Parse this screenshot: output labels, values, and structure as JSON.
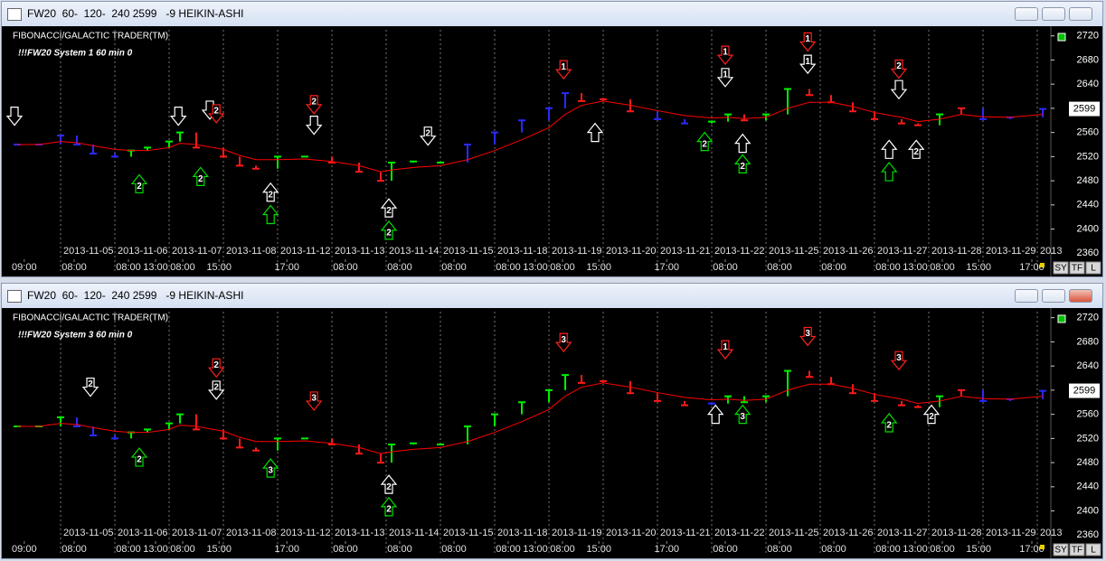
{
  "chart_data": [
    {
      "type": "heikin-ashi",
      "title": "FW20  60-  120-  240 2599   -9 HEIKIN-ASHI",
      "subtitle": "FIBONACCI/GALACTIC TRADER(TM)",
      "annotation": "!!!FW20 System 1 60 min 0",
      "buttons": [
        "SY",
        "TF",
        "L"
      ],
      "last_price": 2599,
      "categories": [
        "2013-11-05",
        "2013-11-06",
        "2013-11-07",
        "2013-11-08",
        "2013-11-12",
        "2013-11-13",
        "2013-11-14",
        "2013-11-15",
        "2013-11-18",
        "2013-11-19",
        "2013-11-20",
        "2013-11-21",
        "2013-11-22",
        "2013-11-25",
        "2013-11-26",
        "2013-11-27",
        "2013-11-28",
        "2013-11-29",
        "2013"
      ],
      "xticks": [
        {
          "value": -0.67,
          "label": "09:00"
        },
        {
          "value": 0.25,
          "label": "08:00"
        },
        {
          "value": 1.25,
          "label": "08:00"
        },
        {
          "value": 1.75,
          "label": "13:00"
        },
        {
          "value": 2.25,
          "label": "08:00"
        },
        {
          "value": 2.92,
          "label": "15:00"
        },
        {
          "value": 4.17,
          "label": "17:00"
        },
        {
          "value": 5.25,
          "label": "08:00"
        },
        {
          "value": 6.25,
          "label": "08:00"
        },
        {
          "value": 7.25,
          "label": "08:00"
        },
        {
          "value": 8.25,
          "label": "08:00"
        },
        {
          "value": 8.75,
          "label": "13:00"
        },
        {
          "value": 9.25,
          "label": "08:00"
        },
        {
          "value": 9.92,
          "label": "15:00"
        },
        {
          "value": 11.17,
          "label": "17:00"
        },
        {
          "value": 12.25,
          "label": "08:00"
        },
        {
          "value": 13.25,
          "label": "08:00"
        },
        {
          "value": 14.25,
          "label": "08:00"
        },
        {
          "value": 15.25,
          "label": "08:00"
        },
        {
          "value": 15.75,
          "label": "13:00"
        },
        {
          "value": 16.25,
          "label": "08:00"
        },
        {
          "value": 16.92,
          "label": "15:00"
        },
        {
          "value": 17.9,
          "label": "17:00"
        }
      ],
      "xlim": [
        -0.917,
        18.25
      ],
      "ylim": [
        2350,
        2730
      ],
      "yticks": [
        2360,
        2400,
        2440,
        2480,
        2520,
        2560,
        2600,
        2640,
        2680,
        2720
      ],
      "x": [
        -0.8,
        -0.4,
        0,
        0.3,
        0.6,
        1,
        1.3,
        1.6,
        2,
        2.2,
        2.5,
        3,
        3.3,
        3.6,
        4,
        4.5,
        5,
        5.5,
        5.9,
        6.1,
        6.5,
        7,
        7.5,
        8,
        8.5,
        9,
        9.3,
        9.6,
        10,
        10.5,
        11,
        11.5,
        12,
        12.3,
        12.6,
        13,
        13.4,
        13.8,
        14.2,
        14.6,
        15,
        15.5,
        15.8,
        16.2,
        16.6,
        17,
        17.5,
        18.1
      ],
      "series": [
        {
          "values": [
            2540,
            2540,
            2555,
            2540,
            2525,
            2520,
            2530,
            2535,
            2545,
            2560,
            2535,
            2520,
            2505,
            2500,
            2520,
            2520,
            2510,
            2495,
            2480,
            2510,
            2512,
            2510,
            2540,
            2560,
            2580,
            2600,
            2625,
            2612,
            2615,
            2595,
            2582,
            2575,
            2578,
            2590,
            2580,
            2590,
            2632,
            2622,
            2610,
            2595,
            2582,
            2575,
            2572,
            2590,
            2600,
            2582,
            2585,
            2599
          ],
          "colors": [
            "#2a2aff",
            "#2a2aff",
            "#2a2aff",
            "#2a2aff",
            "#2a2aff",
            "#2a2aff",
            "#00f000",
            "#00f000",
            "#00f000",
            "#00f000",
            "#ff1a1a",
            "#ff1a1a",
            "#ff1a1a",
            "#ff1a1a",
            "#00f000",
            "#00f000",
            "#ff1a1a",
            "#ff1a1a",
            "#ff1a1a",
            "#00f000",
            "#00f000",
            "#00f000",
            "#2a2aff",
            "#2a2aff",
            "#2a2aff",
            "#2a2aff",
            "#2a2aff",
            "#ff1a1a",
            "#ff1a1a",
            "#ff1a1a",
            "#2a2aff",
            "#2a2aff",
            "#00f000",
            "#00f000",
            "#ff1a1a",
            "#00f000",
            "#00f000",
            "#ff1a1a",
            "#ff1a1a",
            "#ff1a1a",
            "#ff1a1a",
            "#ff1a1a",
            "#ff1a1a",
            "#00f000",
            "#ff1a1a",
            "#2a2aff",
            "#2a2aff",
            "#2a2aff"
          ]
        },
        {
          "values": [
            2540,
            2540,
            2545,
            2543,
            2538,
            2532,
            2530,
            2530,
            2535,
            2542,
            2540,
            2532,
            2522,
            2515,
            2515,
            2516,
            2512,
            2505,
            2495,
            2498,
            2502,
            2505,
            2515,
            2530,
            2548,
            2568,
            2590,
            2605,
            2612,
            2605,
            2596,
            2588,
            2584,
            2585,
            2583,
            2585,
            2600,
            2610,
            2610,
            2603,
            2593,
            2585,
            2578,
            2582,
            2590,
            2586,
            2585,
            2590
          ],
          "color": "#ff0000"
        }
      ],
      "signals": [
        {
          "x": -0.85,
          "y": 2572,
          "direction": "down",
          "color": "#ffffff"
        },
        {
          "x": 1.45,
          "y": 2490,
          "direction": "up",
          "color": "#00e000",
          "label": "2"
        },
        {
          "x": 2.17,
          "y": 2572,
          "direction": "down",
          "color": "#ffffff"
        },
        {
          "x": 2.58,
          "y": 2502,
          "direction": "up",
          "color": "#00e000",
          "label": "2"
        },
        {
          "x": 2.75,
          "y": 2582,
          "direction": "down",
          "color": "#ffffff"
        },
        {
          "x": 2.87,
          "y": 2576,
          "direction": "down",
          "color": "#ff2020",
          "label": "2"
        },
        {
          "x": 3.87,
          "y": 2476,
          "direction": "up",
          "color": "#ffffff",
          "label": "2"
        },
        {
          "x": 3.87,
          "y": 2439,
          "direction": "up",
          "color": "#00e000"
        },
        {
          "x": 4.67,
          "y": 2591,
          "direction": "down",
          "color": "#ff2020",
          "label": "2"
        },
        {
          "x": 4.67,
          "y": 2557,
          "direction": "down",
          "color": "#ffffff"
        },
        {
          "x": 6.05,
          "y": 2450,
          "direction": "up",
          "color": "#ffffff",
          "label": "2"
        },
        {
          "x": 6.05,
          "y": 2413,
          "direction": "up",
          "color": "#00e000",
          "label": "2"
        },
        {
          "x": 6.77,
          "y": 2539,
          "direction": "down",
          "color": "#ffffff",
          "label": "2"
        },
        {
          "x": 9.27,
          "y": 2649,
          "direction": "down",
          "color": "#ff2020",
          "label": "1"
        },
        {
          "x": 9.85,
          "y": 2575,
          "direction": "up",
          "color": "#ffffff"
        },
        {
          "x": 11.87,
          "y": 2560,
          "direction": "up",
          "color": "#00e000",
          "label": "2"
        },
        {
          "x": 12.25,
          "y": 2673,
          "direction": "down",
          "color": "#ff2020",
          "label": "1"
        },
        {
          "x": 12.25,
          "y": 2636,
          "direction": "down",
          "color": "#ffffff",
          "label": "1"
        },
        {
          "x": 12.57,
          "y": 2557,
          "direction": "up",
          "color": "#ffffff"
        },
        {
          "x": 12.57,
          "y": 2523,
          "direction": "up",
          "color": "#00e000",
          "label": "2"
        },
        {
          "x": 13.77,
          "y": 2695,
          "direction": "down",
          "color": "#ff2020",
          "label": "1"
        },
        {
          "x": 13.77,
          "y": 2658,
          "direction": "down",
          "color": "#ffffff",
          "label": "1"
        },
        {
          "x": 15.45,
          "y": 2650,
          "direction": "down",
          "color": "#ff2020",
          "label": "2"
        },
        {
          "x": 15.45,
          "y": 2616,
          "direction": "down",
          "color": "#ffffff"
        },
        {
          "x": 15.27,
          "y": 2547,
          "direction": "up",
          "color": "#ffffff"
        },
        {
          "x": 15.27,
          "y": 2510,
          "direction": "up",
          "color": "#00e000"
        },
        {
          "x": 15.77,
          "y": 2547,
          "direction": "up",
          "color": "#ffffff",
          "label": "2"
        }
      ]
    },
    {
      "type": "heikin-ashi",
      "title": "FW20  60-  120-  240 2599   -9 HEIKIN-ASHI",
      "subtitle": "FIBONACCI/GALACTIC TRADER(TM)",
      "annotation": "!!!FW20 System 3 60 min 0",
      "buttons": [
        "SY",
        "TF",
        "L"
      ],
      "last_price": 2599,
      "categories": [
        "2013-11-05",
        "2013-11-06",
        "2013-11-07",
        "2013-11-08",
        "2013-11-12",
        "2013-11-13",
        "2013-11-14",
        "2013-11-15",
        "2013-11-18",
        "2013-11-19",
        "2013-11-20",
        "2013-11-21",
        "2013-11-22",
        "2013-11-25",
        "2013-11-26",
        "2013-11-27",
        "2013-11-28",
        "2013-11-29",
        "2013"
      ],
      "xticks": [
        {
          "value": -0.67,
          "label": "09:00"
        },
        {
          "value": 0.25,
          "label": "08:00"
        },
        {
          "value": 1.25,
          "label": "08:00"
        },
        {
          "value": 1.75,
          "label": "13:00"
        },
        {
          "value": 2.25,
          "label": "08:00"
        },
        {
          "value": 2.92,
          "label": "15:00"
        },
        {
          "value": 4.17,
          "label": "17:00"
        },
        {
          "value": 5.25,
          "label": "08:00"
        },
        {
          "value": 6.25,
          "label": "08:00"
        },
        {
          "value": 7.25,
          "label": "08:00"
        },
        {
          "value": 8.25,
          "label": "08:00"
        },
        {
          "value": 8.75,
          "label": "13:00"
        },
        {
          "value": 9.25,
          "label": "08:00"
        },
        {
          "value": 9.92,
          "label": "15:00"
        },
        {
          "value": 11.17,
          "label": "17:00"
        },
        {
          "value": 12.25,
          "label": "08:00"
        },
        {
          "value": 13.25,
          "label": "08:00"
        },
        {
          "value": 14.25,
          "label": "08:00"
        },
        {
          "value": 15.25,
          "label": "08:00"
        },
        {
          "value": 15.75,
          "label": "13:00"
        },
        {
          "value": 16.25,
          "label": "08:00"
        },
        {
          "value": 16.92,
          "label": "15:00"
        },
        {
          "value": 17.9,
          "label": "17:00"
        }
      ],
      "xlim": [
        -0.917,
        18.25
      ],
      "ylim": [
        2350,
        2730
      ],
      "yticks": [
        2360,
        2400,
        2440,
        2480,
        2520,
        2560,
        2600,
        2640,
        2680,
        2720
      ],
      "x": [
        -0.8,
        -0.4,
        0,
        0.3,
        0.6,
        1,
        1.3,
        1.6,
        2,
        2.2,
        2.5,
        3,
        3.3,
        3.6,
        4,
        4.5,
        5,
        5.5,
        5.9,
        6.1,
        6.5,
        7,
        7.5,
        8,
        8.5,
        9,
        9.3,
        9.6,
        10,
        10.5,
        11,
        11.5,
        12,
        12.3,
        12.6,
        13,
        13.4,
        13.8,
        14.2,
        14.6,
        15,
        15.5,
        15.8,
        16.2,
        16.6,
        17,
        17.5,
        18.1
      ],
      "series": [
        {
          "values": [
            2540,
            2540,
            2555,
            2540,
            2525,
            2520,
            2530,
            2535,
            2545,
            2560,
            2535,
            2520,
            2505,
            2500,
            2520,
            2520,
            2510,
            2495,
            2480,
            2510,
            2512,
            2510,
            2540,
            2560,
            2580,
            2600,
            2625,
            2612,
            2615,
            2595,
            2582,
            2575,
            2578,
            2590,
            2580,
            2590,
            2632,
            2622,
            2610,
            2595,
            2582,
            2575,
            2572,
            2590,
            2600,
            2582,
            2585,
            2599
          ],
          "colors": [
            "#00f000",
            "#00f000",
            "#00f000",
            "#2a2aff",
            "#2a2aff",
            "#2a2aff",
            "#00f000",
            "#00f000",
            "#00f000",
            "#00f000",
            "#ff1a1a",
            "#ff1a1a",
            "#ff1a1a",
            "#ff1a1a",
            "#00f000",
            "#00f000",
            "#ff1a1a",
            "#ff1a1a",
            "#ff1a1a",
            "#00f000",
            "#00f000",
            "#00f000",
            "#00f000",
            "#00f000",
            "#00f000",
            "#00f000",
            "#00f000",
            "#ff1a1a",
            "#ff1a1a",
            "#ff1a1a",
            "#ff1a1a",
            "#ff1a1a",
            "#2a2aff",
            "#00f000",
            "#00f000",
            "#00f000",
            "#00f000",
            "#ff1a1a",
            "#ff1a1a",
            "#ff1a1a",
            "#ff1a1a",
            "#ff1a1a",
            "#ff1a1a",
            "#00f000",
            "#ff1a1a",
            "#2a2aff",
            "#2a2aff",
            "#2a2aff"
          ]
        },
        {
          "values": [
            2540,
            2540,
            2545,
            2543,
            2538,
            2532,
            2530,
            2530,
            2535,
            2542,
            2540,
            2532,
            2522,
            2515,
            2515,
            2516,
            2512,
            2505,
            2495,
            2498,
            2502,
            2505,
            2515,
            2530,
            2548,
            2568,
            2590,
            2605,
            2612,
            2605,
            2596,
            2588,
            2584,
            2585,
            2583,
            2585,
            2600,
            2610,
            2610,
            2603,
            2593,
            2585,
            2578,
            2582,
            2590,
            2586,
            2585,
            2590
          ],
          "color": "#ff0000"
        }
      ],
      "signals": [
        {
          "x": 0.55,
          "y": 2590,
          "direction": "down",
          "color": "#ffffff",
          "label": "2"
        },
        {
          "x": 1.45,
          "y": 2504,
          "direction": "up",
          "color": "#00e000",
          "label": "2"
        },
        {
          "x": 2.87,
          "y": 2622,
          "direction": "down",
          "color": "#ff2020",
          "label": "2"
        },
        {
          "x": 2.87,
          "y": 2585,
          "direction": "down",
          "color": "#ffffff",
          "label": "2"
        },
        {
          "x": 3.87,
          "y": 2486,
          "direction": "up",
          "color": "#00e000",
          "label": "3"
        },
        {
          "x": 4.67,
          "y": 2567,
          "direction": "down",
          "color": "#ff2020",
          "label": "3"
        },
        {
          "x": 6.05,
          "y": 2459,
          "direction": "up",
          "color": "#ffffff",
          "label": "2"
        },
        {
          "x": 6.05,
          "y": 2422,
          "direction": "up",
          "color": "#00e000",
          "label": "2"
        },
        {
          "x": 9.27,
          "y": 2664,
          "direction": "down",
          "color": "#ff2020",
          "label": "3"
        },
        {
          "x": 12.25,
          "y": 2652,
          "direction": "down",
          "color": "#ff2020",
          "label": "1"
        },
        {
          "x": 12.07,
          "y": 2575,
          "direction": "up",
          "color": "#ffffff"
        },
        {
          "x": 12.57,
          "y": 2575,
          "direction": "up",
          "color": "#00e000",
          "label": "3"
        },
        {
          "x": 13.77,
          "y": 2674,
          "direction": "down",
          "color": "#ff2020",
          "label": "3"
        },
        {
          "x": 15.45,
          "y": 2634,
          "direction": "down",
          "color": "#ff2020",
          "label": "3"
        },
        {
          "x": 15.27,
          "y": 2561,
          "direction": "up",
          "color": "#00e000",
          "label": "2"
        },
        {
          "x": 16.05,
          "y": 2575,
          "direction": "up",
          "color": "#ffffff",
          "label": "2"
        }
      ]
    }
  ]
}
